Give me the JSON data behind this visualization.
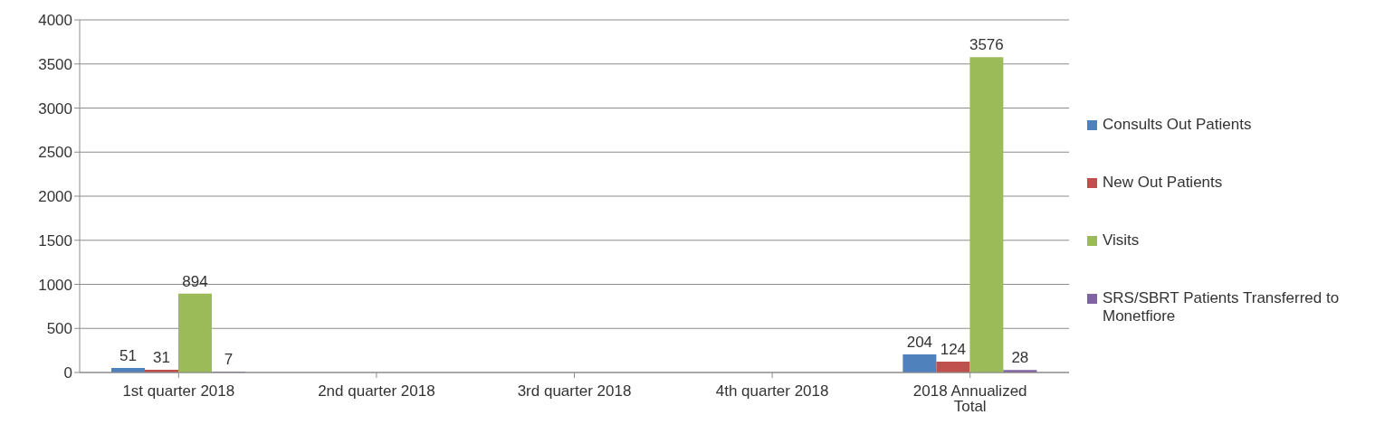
{
  "chart_data": {
    "type": "bar",
    "categories": [
      "1st quarter 2018",
      "2nd quarter 2018",
      "3rd quarter 2018",
      "4th quarter 2018",
      "2018 Annualized Total"
    ],
    "series": [
      {
        "name": "Consults Out Patients",
        "color": "#4f81bd",
        "values": [
          51,
          null,
          null,
          null,
          204
        ]
      },
      {
        "name": "New Out Patients",
        "color": "#c0504d",
        "values": [
          31,
          null,
          null,
          null,
          124
        ]
      },
      {
        "name": "Visits",
        "color": "#9bbb59",
        "values": [
          894,
          null,
          null,
          null,
          3576
        ]
      },
      {
        "name": "SRS/SBRT Patients Transferred to Monetfiore",
        "color": "#8064a2",
        "values": [
          7,
          null,
          null,
          null,
          28
        ]
      }
    ],
    "ylim": [
      0,
      4000
    ],
    "yticks": [
      0,
      500,
      1000,
      1500,
      2000,
      2500,
      3000,
      3500,
      4000
    ],
    "grid": "y",
    "legend": "right",
    "data_labels": true
  }
}
